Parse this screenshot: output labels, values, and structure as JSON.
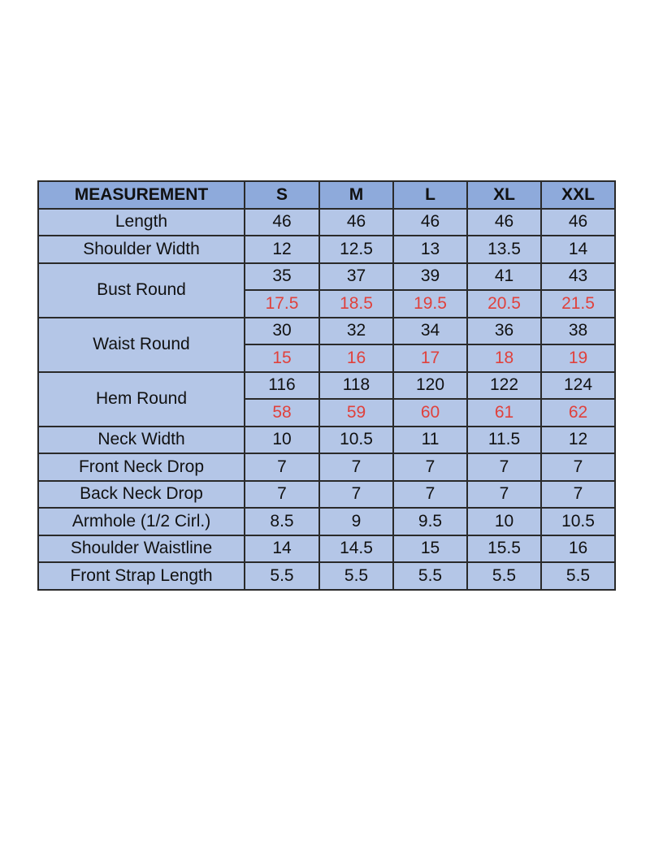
{
  "table": {
    "header": [
      "MEASUREMENT",
      "S",
      "M",
      "L",
      "XL",
      "XXL"
    ],
    "rows": [
      {
        "label": "Length",
        "values": [
          [
            46,
            46,
            46,
            46,
            46
          ]
        ]
      },
      {
        "label": "Shoulder Width",
        "values": [
          [
            12,
            12.5,
            13,
            13.5,
            14
          ]
        ]
      },
      {
        "label": "Bust Round",
        "values": [
          [
            35,
            37,
            39,
            41,
            43
          ],
          [
            17.5,
            18.5,
            19.5,
            20.5,
            21.5
          ]
        ]
      },
      {
        "label": "Waist Round",
        "values": [
          [
            30,
            32,
            34,
            36,
            38
          ],
          [
            15,
            16,
            17,
            18,
            19
          ]
        ]
      },
      {
        "label": "Hem Round",
        "values": [
          [
            116,
            118,
            120,
            122,
            124
          ],
          [
            58,
            59,
            60,
            61,
            62
          ]
        ]
      },
      {
        "label": "Neck Width",
        "values": [
          [
            10,
            10.5,
            11,
            11.5,
            12
          ]
        ]
      },
      {
        "label": "Front Neck Drop",
        "values": [
          [
            7,
            7,
            7,
            7,
            7
          ]
        ]
      },
      {
        "label": "Back Neck Drop",
        "values": [
          [
            7,
            7,
            7,
            7,
            7
          ]
        ]
      },
      {
        "label": "Armhole (1/2 Cirl.)",
        "values": [
          [
            8.5,
            9,
            9.5,
            10,
            10.5
          ]
        ]
      },
      {
        "label": "Shoulder Waistline",
        "values": [
          [
            14,
            14.5,
            15,
            15.5,
            16
          ]
        ]
      },
      {
        "label": "Front Strap Length",
        "values": [
          [
            5.5,
            5.5,
            5.5,
            5.5,
            5.5
          ]
        ]
      }
    ]
  }
}
